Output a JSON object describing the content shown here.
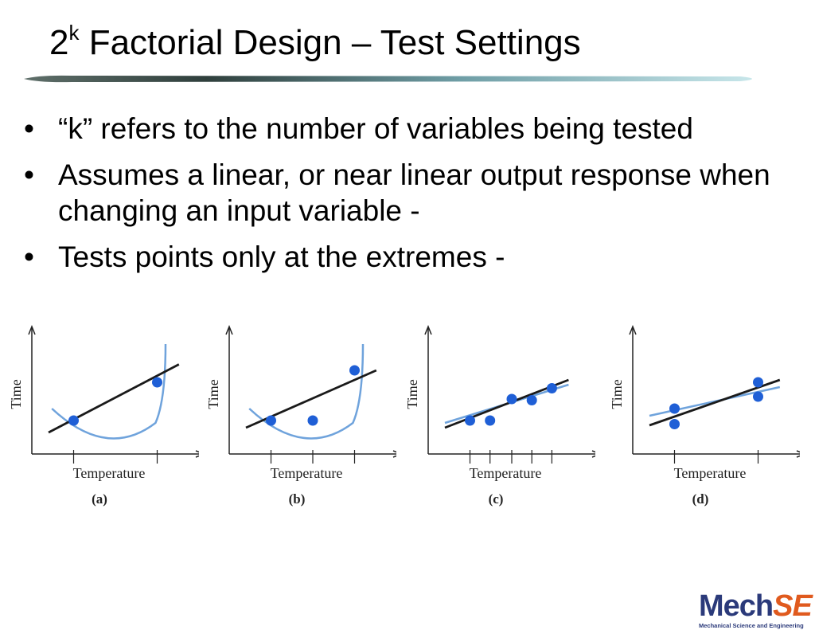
{
  "slide": {
    "title_base": "2",
    "title_sup": "k",
    "title_rest": " Factorial Design – Test Settings"
  },
  "bullets": [
    {
      "marker": "•",
      "text": "“k” refers to the number of variables being tested"
    },
    {
      "marker": "•",
      "text": "Assumes a linear, or near linear output response when changing an input variable -"
    },
    {
      "marker": "•",
      "text": "Tests points only at the extremes -"
    }
  ],
  "figure": {
    "xlabel": "Temperature",
    "ylabel": "Time",
    "colors": {
      "points": "#1f5fd6",
      "fit_black": "#1a1a1a",
      "fit_blue": "#6fa3dc",
      "axes": "#222222"
    }
  },
  "chart_data": [
    {
      "type": "scatter",
      "panel_label": "(a)",
      "xlabel": "Temperature",
      "ylabel": "Time",
      "points": [
        [
          0.25,
          0.28
        ],
        [
          0.75,
          0.6
        ]
      ],
      "fit_line": [
        [
          0.1,
          0.18
        ],
        [
          0.88,
          0.75
        ]
      ],
      "true_curve": "u-shaped",
      "tick_x": [
        0.25,
        0.75
      ]
    },
    {
      "type": "scatter",
      "panel_label": "(b)",
      "xlabel": "Temperature",
      "ylabel": "Time",
      "points": [
        [
          0.25,
          0.28
        ],
        [
          0.5,
          0.28
        ],
        [
          0.75,
          0.7
        ]
      ],
      "fit_line": [
        [
          0.1,
          0.22
        ],
        [
          0.88,
          0.7
        ]
      ],
      "true_curve": "u-shaped",
      "tick_x": [
        0.25,
        0.5,
        0.75
      ]
    },
    {
      "type": "scatter",
      "panel_label": "(c)",
      "xlabel": "Temperature",
      "ylabel": "Time",
      "points": [
        [
          0.25,
          0.28
        ],
        [
          0.37,
          0.28
        ],
        [
          0.5,
          0.46
        ],
        [
          0.62,
          0.45
        ],
        [
          0.74,
          0.55
        ]
      ],
      "fit_line": [
        [
          0.1,
          0.22
        ],
        [
          0.84,
          0.62
        ]
      ],
      "fit_line_2": [
        [
          0.1,
          0.26
        ],
        [
          0.84,
          0.58
        ]
      ],
      "tick_x": [
        0.25,
        0.37,
        0.5,
        0.62,
        0.74
      ]
    },
    {
      "type": "scatter",
      "panel_label": "(d)",
      "xlabel": "Temperature",
      "ylabel": "Time",
      "points": [
        [
          0.25,
          0.38
        ],
        [
          0.25,
          0.25
        ],
        [
          0.75,
          0.6
        ],
        [
          0.75,
          0.48
        ]
      ],
      "fit_line": [
        [
          0.1,
          0.24
        ],
        [
          0.88,
          0.62
        ]
      ],
      "fit_line_2": [
        [
          0.1,
          0.32
        ],
        [
          0.88,
          0.56
        ]
      ],
      "tick_x": [
        0.25,
        0.75
      ]
    }
  ],
  "logo": {
    "mech": "Mech",
    "se": "SE",
    "subtitle": "Mechanical Science and Engineering"
  }
}
